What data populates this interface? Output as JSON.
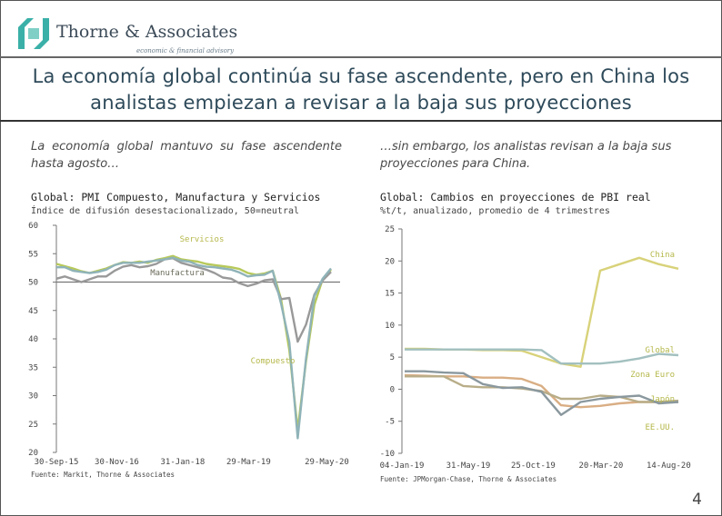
{
  "header": {
    "company": "Thorne & Associates",
    "tagline": "economic & financial advisory"
  },
  "title": "La economía global continúa su fase ascendente, pero en China los analistas empiezan a revisar a la baja sus proyecciones",
  "intro_left": "La economía global mantuvo su fase ascendente hasta agosto…",
  "intro_right": "…sin embargo, los analistas revisan a la baja sus proyecciones para China.",
  "left_chart": {
    "title": "Global: PMI Compuesto, Manufactura y Servicios",
    "subtitle": "Índice de difusión desestacionalizado, 50=neutral",
    "source": "Fuente: Markit, Thorne & Associates"
  },
  "right_chart": {
    "title": "Global: Cambios en proyecciones de PBI real",
    "subtitle": "%t/t, anualizado, promedio de 4 trimestres",
    "source": "Fuente: JPMorgan-Chase, Thorne & Associates"
  },
  "page_number": "4",
  "colors": {
    "servicios": "#b7c95a",
    "manufactura": "#999999",
    "compuesto": "#8fb3b8",
    "china": "#d8d27a",
    "global": "#a2c0bf",
    "zona_euro": "#d9ae84",
    "japon": "#b8ad88",
    "eeuu": "#8a989e",
    "label": "#b5b84a"
  },
  "chart_data": [
    {
      "type": "line",
      "title": "Global: PMI Compuesto, Manufactura y Servicios",
      "ylabel": "Índice de difusión desestacionalizado, 50=neutral",
      "ylim": [
        20,
        60
      ],
      "yticks": [
        20,
        25,
        30,
        35,
        40,
        45,
        50,
        55,
        60
      ],
      "reference_line": 50,
      "xticklabels": [
        "30-Sep-15",
        "30-Nov-16",
        "31-Jan-18",
        "29-Mar-19",
        "29-May-20"
      ],
      "x": [
        "Sep-15",
        "Nov-15",
        "Jan-16",
        "Mar-16",
        "May-16",
        "Jul-16",
        "Sep-16",
        "Nov-16",
        "Jan-17",
        "Mar-17",
        "May-17",
        "Jul-17",
        "Sep-17",
        "Nov-17",
        "Jan-18",
        "Mar-18",
        "May-18",
        "Jul-18",
        "Sep-18",
        "Nov-18",
        "Jan-19",
        "Mar-19",
        "May-19",
        "Jul-19",
        "Sep-19",
        "Nov-19",
        "Jan-20",
        "Feb-20",
        "Mar-20",
        "Apr-20",
        "May-20",
        "Jun-20",
        "Jul-20",
        "Aug-20"
      ],
      "series": [
        {
          "name": "Servicios",
          "values": [
            53.2,
            52.8,
            52.4,
            51.9,
            51.6,
            52.0,
            52.4,
            53.0,
            53.5,
            53.4,
            53.6,
            53.4,
            53.9,
            54.2,
            54.6,
            54.0,
            53.8,
            53.6,
            53.2,
            53.0,
            52.8,
            52.6,
            52.3,
            51.6,
            51.3,
            51.5,
            52.0,
            47.0,
            38.0,
            24.0,
            36.0,
            46.0,
            50.5,
            52.2
          ]
        },
        {
          "name": "Manufactura",
          "values": [
            50.6,
            51.0,
            50.5,
            50.0,
            50.5,
            51.0,
            51.0,
            52.0,
            52.7,
            53.0,
            52.6,
            52.8,
            53.2,
            54.0,
            54.2,
            53.4,
            53.0,
            52.6,
            52.2,
            51.6,
            50.8,
            50.6,
            49.8,
            49.3,
            49.7,
            50.3,
            50.5,
            47.0,
            47.2,
            39.5,
            42.5,
            47.8,
            50.3,
            51.8
          ]
        },
        {
          "name": "Compuesto",
          "values": [
            52.6,
            52.6,
            52.0,
            51.8,
            51.6,
            51.8,
            52.2,
            53.0,
            53.4,
            53.4,
            53.4,
            53.6,
            53.8,
            54.0,
            54.3,
            53.8,
            53.6,
            53.0,
            52.7,
            52.6,
            52.4,
            52.2,
            51.7,
            51.0,
            51.2,
            51.3,
            52.0,
            46.2,
            39.4,
            22.5,
            36.5,
            47.5,
            50.6,
            52.4
          ]
        }
      ]
    },
    {
      "type": "line",
      "title": "Global: Cambios en proyecciones de PBI real",
      "ylabel": "%t/t, anualizado, promedio de 4 trimestres",
      "ylim": [
        -10,
        25
      ],
      "yticks": [
        -10,
        -5,
        0,
        5,
        10,
        15,
        20,
        25
      ],
      "xticklabels": [
        "04-Jan-19",
        "31-May-19",
        "25-Oct-19",
        "20-Mar-20",
        "14-Aug-20"
      ],
      "x": [
        "Jan-19",
        "Mar-19",
        "May-19",
        "Jul-19",
        "Sep-19",
        "Nov-19",
        "Jan-20",
        "Feb-20",
        "Mar-20",
        "Apr-20",
        "May-20",
        "Jun-20",
        "Jul-20",
        "Aug-20",
        "Sep-20"
      ],
      "series": [
        {
          "name": "China",
          "values": [
            6.3,
            6.3,
            6.2,
            6.2,
            6.1,
            6.1,
            6.0,
            5.0,
            4.0,
            3.5,
            18.5,
            19.5,
            20.5,
            19.5,
            18.8
          ]
        },
        {
          "name": "Global",
          "values": [
            6.2,
            6.2,
            6.2,
            6.2,
            6.2,
            6.2,
            6.2,
            6.1,
            4.0,
            4.0,
            4.0,
            4.3,
            4.8,
            5.5,
            5.3
          ]
        },
        {
          "name": "Zona Euro",
          "values": [
            2.2,
            2.1,
            2.0,
            2.0,
            1.8,
            1.8,
            1.6,
            0.5,
            -2.5,
            -2.8,
            -2.6,
            -2.2,
            -2.0,
            -2.0,
            -2.0
          ]
        },
        {
          "name": "Japón",
          "values": [
            2.0,
            2.0,
            2.0,
            0.5,
            0.3,
            0.3,
            0.1,
            -0.3,
            -1.5,
            -1.5,
            -1.0,
            -1.2,
            -2.0,
            -2.0,
            -1.8
          ]
        },
        {
          "name": "EE.UU.",
          "values": [
            2.8,
            2.8,
            2.6,
            2.5,
            0.8,
            0.2,
            0.3,
            -0.4,
            -4.0,
            -2.0,
            -1.5,
            -1.2,
            -1.0,
            -2.2,
            -2.0
          ]
        }
      ]
    }
  ]
}
